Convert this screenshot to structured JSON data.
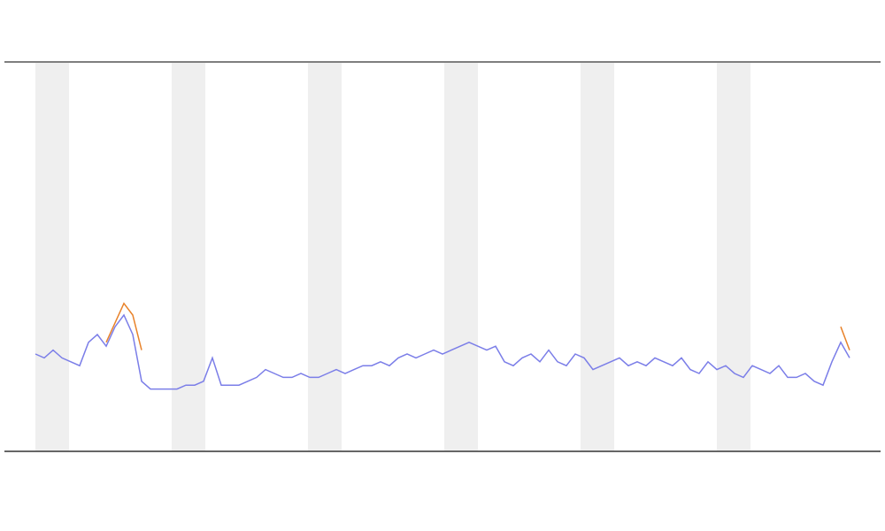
{
  "chart_data": {
    "type": "line",
    "x": [
      0,
      1,
      2,
      3,
      4,
      5,
      6,
      7,
      8,
      9,
      10,
      11,
      12,
      13,
      14,
      15,
      16,
      17,
      18,
      19,
      20,
      21,
      22,
      23,
      24,
      25,
      26,
      27,
      28,
      29,
      30,
      31,
      32,
      33,
      34,
      35,
      36,
      37,
      38,
      39,
      40,
      41,
      42,
      43,
      44,
      45,
      46,
      47,
      48,
      49,
      50,
      51,
      52,
      53,
      54,
      55,
      56,
      57,
      58,
      59,
      60,
      61,
      62,
      63,
      64,
      65,
      66,
      67,
      68,
      69,
      70,
      71,
      72,
      73,
      74,
      75,
      76,
      77,
      78,
      79,
      80,
      81,
      82,
      83,
      84,
      85,
      86,
      87,
      88,
      89,
      90,
      91,
      92
    ],
    "series": [
      {
        "color": "#7b7ee8",
        "values": [
          25,
          24,
          26,
          24,
          23,
          22,
          28,
          30,
          27,
          32,
          35,
          30,
          18,
          16,
          16,
          16,
          16,
          17,
          17,
          18,
          24,
          17,
          17,
          17,
          18,
          19,
          21,
          20,
          19,
          19,
          20,
          19,
          19,
          20,
          21,
          20,
          21,
          22,
          22,
          23,
          22,
          24,
          25,
          24,
          25,
          26,
          25,
          26,
          27,
          28,
          27,
          26,
          27,
          23,
          22,
          24,
          25,
          23,
          26,
          23,
          22,
          25,
          24,
          21,
          22,
          23,
          24,
          22,
          23,
          22,
          24,
          23,
          22,
          24,
          21,
          20,
          23,
          21,
          22,
          20,
          19,
          22,
          21,
          20,
          22,
          19,
          19,
          20,
          18,
          17,
          23,
          28,
          24
        ]
      },
      {
        "color": "#e8822a",
        "values": [
          null,
          null,
          null,
          null,
          null,
          null,
          null,
          null,
          28,
          33,
          38,
          35,
          26,
          null,
          null,
          null,
          null,
          null,
          null,
          null,
          null,
          null,
          null,
          null,
          null,
          null,
          null,
          null,
          null,
          null,
          null,
          null,
          null,
          null,
          null,
          null,
          null,
          null,
          null,
          null,
          null,
          null,
          null,
          null,
          null,
          null,
          null,
          null,
          null,
          null,
          null,
          null,
          null,
          null,
          null,
          null,
          null,
          null,
          null,
          null,
          null,
          null,
          null,
          null,
          null,
          null,
          null,
          null,
          null,
          null,
          null,
          null,
          null,
          null,
          null,
          null,
          null,
          null,
          null,
          null,
          null,
          null,
          null,
          null,
          null,
          null,
          null,
          null,
          null,
          null,
          null,
          32,
          26
        ]
      }
    ],
    "xlim": [
      0,
      92
    ],
    "ylim": [
      0,
      100
    ]
  }
}
